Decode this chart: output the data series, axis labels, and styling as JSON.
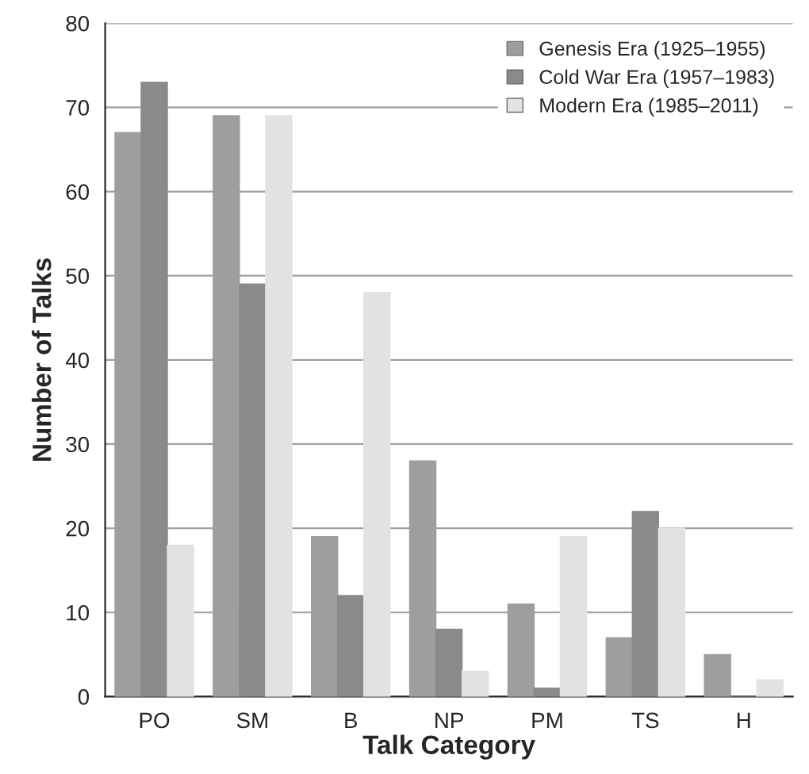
{
  "chart_data": {
    "type": "bar",
    "xlabel": "Talk Category",
    "ylabel": "Number of Talks",
    "categories": [
      "PO",
      "SM",
      "B",
      "NP",
      "PM",
      "TS",
      "H"
    ],
    "series": [
      {
        "name": "Genesis Era (1925–1955)",
        "color": "#9e9e9e",
        "values": [
          67,
          69,
          19,
          28,
          11,
          7,
          5
        ]
      },
      {
        "name": "Cold War Era (1957–1983)",
        "color": "#8a8a8a",
        "values": [
          73,
          49,
          12,
          8,
          1,
          22,
          0
        ]
      },
      {
        "name": "Modern Era (1985–2011)",
        "color": "#e2e2e2",
        "values": [
          18,
          69,
          48,
          3,
          19,
          20,
          2
        ]
      }
    ],
    "ylim": [
      0,
      80
    ],
    "yticks": [
      0,
      10,
      20,
      30,
      40,
      50,
      60,
      70,
      80
    ],
    "grid": "y",
    "legend": "top right"
  }
}
